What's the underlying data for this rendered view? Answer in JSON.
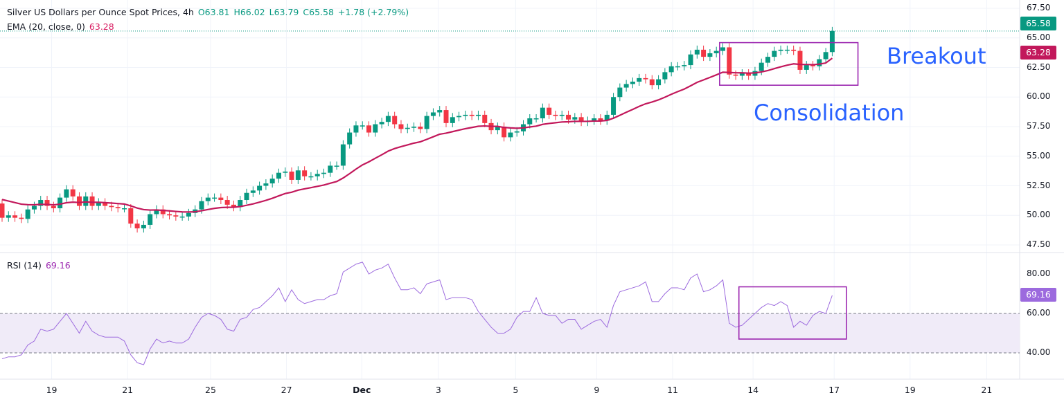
{
  "legend": {
    "symbol": "Silver US Dollars per Ounce Spot Prices, 4h",
    "open": "O63.81",
    "high": "H66.02",
    "low": "L63.79",
    "close": "C65.58",
    "change": "+1.78 (+2.79%)",
    "ema_label": "EMA (20, close, 0)",
    "ema_value": "63.28",
    "rsi_label": "RSI (14)",
    "rsi_value": "69.16"
  },
  "price_tags": {
    "last": "65.58",
    "ema": "63.28",
    "rsi": "69.16"
  },
  "annotations": {
    "breakout": "Breakout",
    "consolidation": "Consolidation"
  },
  "colors": {
    "up": "#089981",
    "down": "#f23645",
    "ema": "#c2185b",
    "rsi": "#9c6ade",
    "box": "#9c27b0",
    "annotation": "#2962ff"
  },
  "chart_data": [
    {
      "type": "candlestick",
      "title": "Silver US Dollars per Ounce Spot Prices, 4h",
      "y_ticks": [
        "67.50",
        "65.00",
        "62.50",
        "60.00",
        "57.50",
        "55.00",
        "52.50",
        "50.00",
        "47.50"
      ],
      "ylim": [
        47.5,
        67.5
      ],
      "x_ticks": [
        {
          "label": "19",
          "index": 7.7
        },
        {
          "label": "21",
          "index": 19.5
        },
        {
          "label": "25",
          "index": 32.4
        },
        {
          "label": "27",
          "index": 44.2
        },
        {
          "label": "Dec",
          "index": 55.9
        },
        {
          "label": "3",
          "index": 67.8
        },
        {
          "label": "5",
          "index": 79.8
        },
        {
          "label": "9",
          "index": 92.4
        },
        {
          "label": "11",
          "index": 104.2
        },
        {
          "label": "14",
          "index": 116.7
        },
        {
          "label": "17",
          "index": 129.3
        },
        {
          "label": "19",
          "index": 141.1
        },
        {
          "label": "21",
          "index": 153
        }
      ],
      "first_open": 51.0,
      "closes": [
        49.8,
        50.0,
        49.8,
        49.7,
        50.5,
        50.8,
        51.3,
        50.8,
        50.6,
        51.5,
        52.2,
        51.6,
        50.8,
        51.6,
        50.8,
        51.1,
        50.8,
        50.7,
        50.6,
        50.6,
        49.3,
        48.9,
        49.2,
        50.1,
        50.5,
        50.1,
        50.0,
        49.9,
        49.9,
        50.2,
        50.5,
        51.2,
        51.5,
        51.5,
        51.3,
        50.9,
        50.7,
        51.3,
        51.9,
        52.1,
        52.5,
        52.7,
        53.1,
        53.6,
        53.7,
        53.0,
        53.8,
        53.3,
        53.3,
        53.5,
        53.6,
        54.2,
        54.2,
        56.0,
        57.0,
        57.6,
        57.6,
        57.0,
        57.7,
        57.9,
        58.4,
        57.7,
        57.3,
        57.4,
        57.5,
        57.3,
        58.4,
        58.7,
        58.9,
        57.8,
        58.3,
        58.4,
        58.5,
        58.4,
        58.5,
        57.8,
        57.2,
        57.5,
        56.6,
        57.0,
        57.1,
        57.7,
        58.2,
        58.2,
        59.1,
        58.5,
        58.4,
        58.5,
        58.1,
        58.3,
        57.9,
        58.0,
        58.2,
        58.0,
        58.5,
        60.0,
        60.8,
        61.1,
        61.3,
        61.6,
        61.5,
        61.0,
        61.5,
        62.1,
        62.6,
        62.6,
        62.7,
        63.6,
        64.0,
        63.4,
        63.7,
        63.9,
        64.2,
        61.9,
        61.8,
        62.0,
        61.8,
        62.2,
        62.9,
        63.4,
        63.9,
        64.0,
        64.0,
        63.9,
        62.3,
        62.7,
        62.6,
        63.2,
        63.8,
        65.58
      ],
      "ema_period": 20,
      "ema_seed": 51.5,
      "last_price": 65.58,
      "ema_last": 63.28,
      "boxes": [
        {
          "label": "Consolidation",
          "from_index": 111.5,
          "to_index": 133,
          "y_range": [
            61.0,
            64.6
          ]
        }
      ]
    },
    {
      "type": "line",
      "title": "RSI (14)",
      "y_ticks": [
        "80.00",
        "60.00",
        "40.00"
      ],
      "ylim": [
        30,
        90
      ],
      "band": [
        40,
        60
      ],
      "values": [
        37,
        38,
        38,
        39,
        44,
        46,
        52,
        51,
        52,
        56,
        60,
        55,
        50,
        56,
        51,
        49,
        48,
        48,
        48,
        46,
        39,
        35,
        34,
        42,
        47,
        45,
        46,
        45,
        45,
        47,
        53,
        58,
        60,
        59,
        57,
        52,
        51,
        57,
        58,
        62,
        63,
        66,
        69,
        73,
        66,
        72,
        67,
        65,
        66,
        67,
        67,
        69,
        70,
        81,
        83,
        85,
        86,
        80,
        82,
        83,
        85,
        78,
        72,
        72,
        73,
        70,
        75,
        76,
        77,
        67,
        68,
        68,
        68,
        67,
        61,
        57,
        53,
        50,
        50,
        52,
        58,
        61,
        61,
        68,
        60,
        59,
        59,
        55,
        57,
        57,
        52,
        54,
        56,
        57,
        53,
        64,
        71,
        72,
        73,
        74,
        76,
        66,
        66,
        70,
        73,
        73,
        72,
        78,
        80,
        71,
        72,
        74,
        77,
        55,
        53,
        54,
        57,
        60,
        63,
        65,
        64,
        66,
        64,
        53,
        56,
        54,
        59,
        61,
        60,
        69.16
      ],
      "boxes": [
        {
          "from_index": 114.5,
          "to_index": 131.2,
          "y_range": [
            47,
            73.5
          ]
        }
      ]
    }
  ]
}
